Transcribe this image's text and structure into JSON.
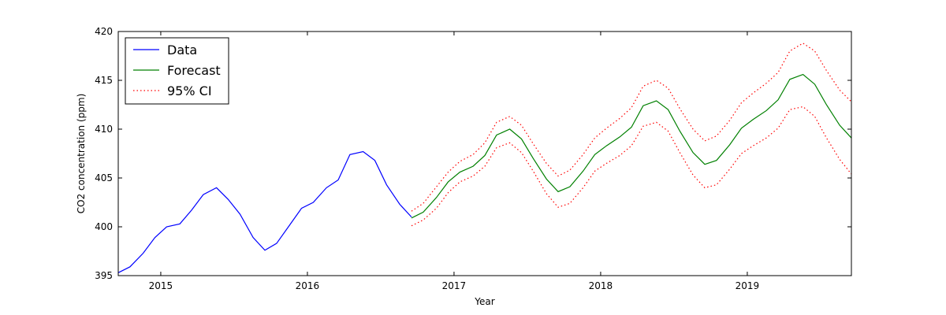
{
  "chart_data": {
    "type": "line",
    "title": "",
    "xlabel": "Year",
    "ylabel": "CO2 concentration (ppm)",
    "xlim": [
      2014.71,
      2019.71
    ],
    "ylim": [
      395,
      420
    ],
    "x_ticks": [
      2015,
      2016,
      2017,
      2018,
      2019
    ],
    "x_tick_labels": [
      "2015",
      "2016",
      "2017",
      "2018",
      "2019"
    ],
    "y_ticks": [
      395,
      400,
      405,
      410,
      415,
      420
    ],
    "y_tick_labels": [
      "395",
      "400",
      "405",
      "410",
      "415",
      "420"
    ],
    "grid": false,
    "legend_position": "upper-left",
    "series": [
      {
        "name": "Data",
        "color": "#0000ff",
        "style": "solid",
        "x": [
          2014.71,
          2014.79,
          2014.88,
          2014.96,
          2015.04,
          2015.13,
          2015.21,
          2015.29,
          2015.38,
          2015.46,
          2015.54,
          2015.63,
          2015.71,
          2015.79,
          2015.88,
          2015.96,
          2016.04,
          2016.13,
          2016.21,
          2016.29,
          2016.38,
          2016.46,
          2016.54,
          2016.63,
          2016.71
        ],
        "values": [
          395.3,
          395.9,
          397.3,
          398.9,
          400.0,
          400.3,
          401.7,
          403.3,
          404.0,
          402.8,
          401.3,
          398.9,
          397.6,
          398.3,
          400.2,
          401.9,
          402.5,
          404.0,
          404.8,
          407.4,
          407.7,
          406.8,
          404.3,
          402.3,
          401.0
        ]
      },
      {
        "name": "Forecast",
        "color": "#008000",
        "style": "solid",
        "x": [
          2016.71,
          2016.79,
          2016.88,
          2016.96,
          2017.04,
          2017.13,
          2017.21,
          2017.29,
          2017.38,
          2017.46,
          2017.54,
          2017.63,
          2017.71,
          2017.79,
          2017.88,
          2017.96,
          2018.04,
          2018.13,
          2018.21,
          2018.29,
          2018.38,
          2018.46,
          2018.54,
          2018.63,
          2018.71,
          2018.79,
          2018.88,
          2018.96,
          2019.04,
          2019.13,
          2019.21,
          2019.29,
          2019.38,
          2019.46,
          2019.54,
          2019.63,
          2019.71
        ],
        "values": [
          400.9,
          401.5,
          403.0,
          404.6,
          405.6,
          406.2,
          407.3,
          409.4,
          410.0,
          409.0,
          407.0,
          404.9,
          403.6,
          404.1,
          405.7,
          407.4,
          408.3,
          409.2,
          410.2,
          412.4,
          412.9,
          412.0,
          409.8,
          407.6,
          406.4,
          406.8,
          408.4,
          410.1,
          411.0,
          411.9,
          413.0,
          415.1,
          415.6,
          414.6,
          412.5,
          410.4,
          409.1
        ]
      },
      {
        "name": "95% CI",
        "color": "#ff0000",
        "style": "dotted",
        "x": [
          2016.71,
          2016.79,
          2016.88,
          2016.96,
          2017.04,
          2017.13,
          2017.21,
          2017.29,
          2017.38,
          2017.46,
          2017.54,
          2017.63,
          2017.71,
          2017.79,
          2017.88,
          2017.96,
          2018.04,
          2018.13,
          2018.21,
          2018.29,
          2018.38,
          2018.46,
          2018.54,
          2018.63,
          2018.71,
          2018.79,
          2018.88,
          2018.96,
          2019.04,
          2019.13,
          2019.21,
          2019.29,
          2019.38,
          2019.46,
          2019.54,
          2019.63,
          2019.71
        ],
        "values": [
          401.6,
          402.4,
          404.1,
          405.6,
          406.7,
          407.4,
          408.6,
          410.7,
          411.3,
          410.4,
          408.5,
          406.5,
          405.2,
          405.8,
          407.4,
          409.1,
          410.1,
          411.1,
          412.2,
          414.4,
          415.0,
          414.2,
          412.1,
          410.0,
          408.8,
          409.3,
          410.9,
          412.7,
          413.7,
          414.7,
          415.8,
          418.0,
          418.8,
          418.0,
          416.0,
          414.0,
          412.8
        ]
      },
      {
        "name": "95% CI",
        "color": "#ff0000",
        "style": "dotted",
        "x": [
          2016.71,
          2016.79,
          2016.88,
          2016.96,
          2017.04,
          2017.13,
          2017.21,
          2017.29,
          2017.38,
          2017.46,
          2017.54,
          2017.63,
          2017.71,
          2017.79,
          2017.88,
          2017.96,
          2018.04,
          2018.13,
          2018.21,
          2018.29,
          2018.38,
          2018.46,
          2018.54,
          2018.63,
          2018.71,
          2018.79,
          2018.88,
          2018.96,
          2019.04,
          2019.13,
          2019.21,
          2019.29,
          2019.38,
          2019.46,
          2019.54,
          2019.63,
          2019.71
        ],
        "values": [
          400.1,
          400.7,
          401.9,
          403.5,
          404.6,
          405.2,
          406.2,
          408.1,
          408.6,
          407.6,
          405.7,
          403.4,
          402.0,
          402.4,
          404.0,
          405.7,
          406.5,
          407.3,
          408.3,
          410.3,
          410.7,
          409.8,
          407.6,
          405.3,
          404.0,
          404.3,
          405.9,
          407.5,
          408.3,
          409.1,
          410.1,
          412.0,
          412.3,
          411.3,
          409.1,
          406.9,
          405.4
        ]
      }
    ],
    "legend": [
      {
        "label": "Data",
        "color": "#0000ff",
        "style": "solid"
      },
      {
        "label": "Forecast",
        "color": "#008000",
        "style": "solid"
      },
      {
        "label": "95% CI",
        "color": "#ff0000",
        "style": "dotted"
      }
    ]
  }
}
